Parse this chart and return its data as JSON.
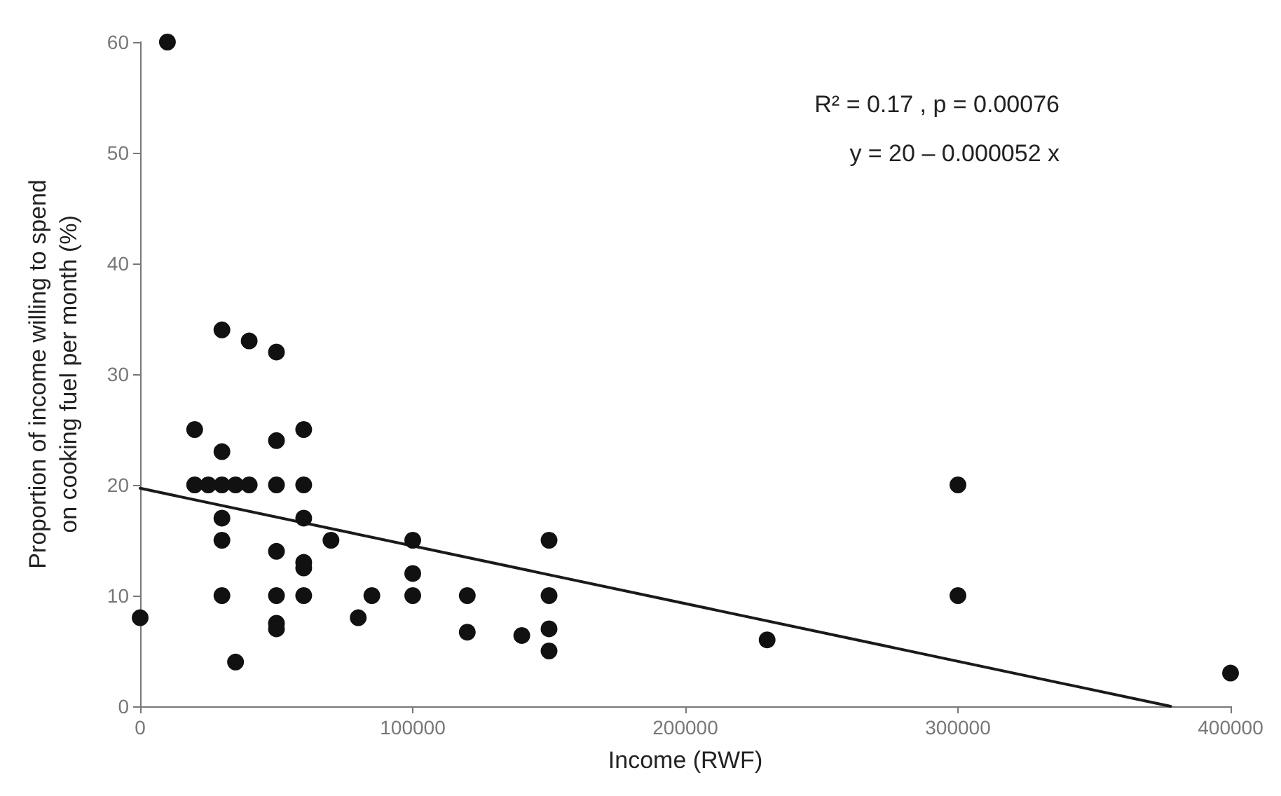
{
  "chart_data": {
    "type": "scatter",
    "xlabel": "Income (RWF)",
    "ylabel": "Proportion of income willing to spend\non cooking fuel per month (%)",
    "annotations": [
      "R² = 0.17 , p = 0.00076",
      "y = 20 – 0.000052 x"
    ],
    "xlim": [
      0,
      400000
    ],
    "xticks": [
      0,
      100000,
      200000,
      300000,
      400000
    ],
    "ylim": [
      0,
      60
    ],
    "yticks": [
      0,
      10,
      20,
      30,
      40,
      50,
      60
    ],
    "grid": false,
    "marker": "circle",
    "series": [
      {
        "color": "#111111",
        "x": [
          0,
          10000,
          20000,
          20000,
          25000,
          30000,
          30000,
          30000,
          30000,
          30000,
          30000,
          35000,
          35000,
          40000,
          40000,
          50000,
          50000,
          50000,
          50000,
          50000,
          50000,
          50000,
          60000,
          60000,
          60000,
          60000,
          60000,
          60000,
          70000,
          80000,
          85000,
          100000,
          100000,
          100000,
          120000,
          120000,
          140000,
          150000,
          150000,
          150000,
          150000,
          230000,
          300000,
          300000,
          400000
        ],
        "values": [
          8,
          60,
          25,
          20,
          20,
          34,
          23,
          20,
          17,
          15,
          10,
          20,
          4,
          33,
          20,
          32,
          24,
          20,
          14,
          10,
          7.5,
          7,
          25,
          20,
          17,
          13,
          12.5,
          10,
          15,
          8,
          10,
          15,
          12,
          10,
          10,
          6.7,
          6.4,
          15,
          10,
          7,
          5,
          6,
          20,
          10,
          3
        ]
      },
      {
        "type": "line",
        "color": "#1a1a1a",
        "marker": "none",
        "line_style": "solid",
        "x": [
          0,
          378000
        ],
        "values": [
          19.7,
          0
        ]
      }
    ]
  }
}
